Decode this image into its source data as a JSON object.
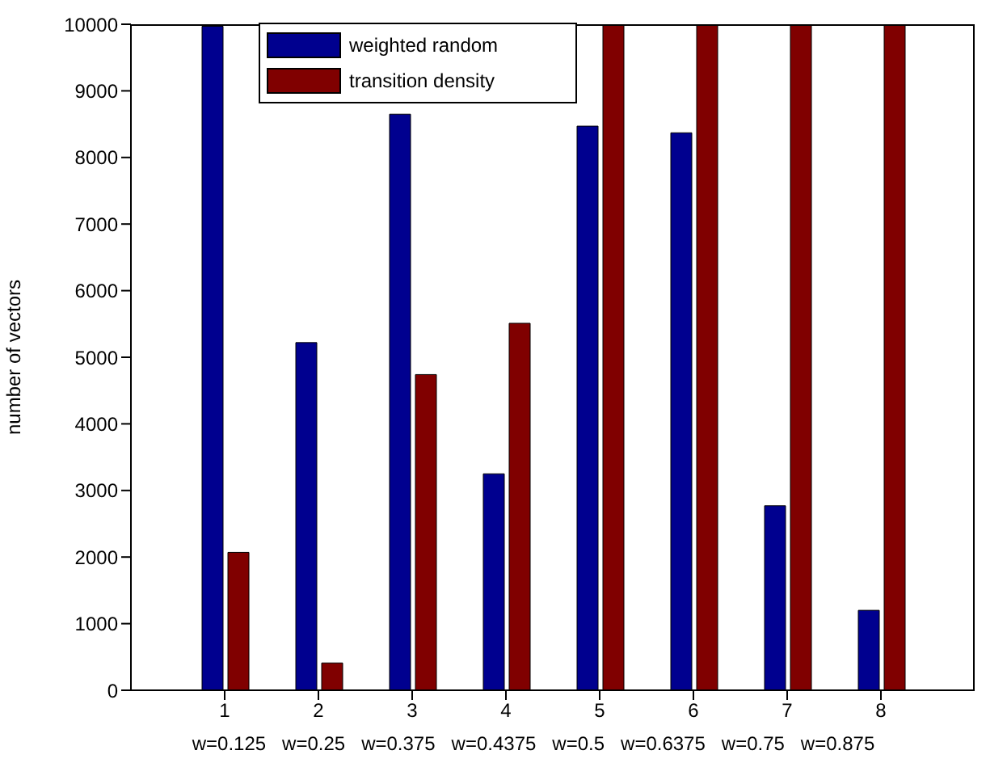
{
  "chart_data": {
    "type": "bar",
    "ylabel": "number of vectors",
    "xlabel": "w=0.125   w=0.25   w=0.375   w=0.4375   w=0.5   w=0.6375   w=0.75   w=0.875",
    "x": [
      1,
      2,
      3,
      4,
      5,
      6,
      7,
      8
    ],
    "xlim": [
      0,
      9
    ],
    "xticks": [
      1,
      2,
      3,
      4,
      5,
      6,
      7,
      8
    ],
    "ylim": [
      0,
      10000
    ],
    "yticks": [
      0,
      1000,
      2000,
      3000,
      4000,
      5000,
      6000,
      7000,
      8000,
      9000,
      10000
    ],
    "series": [
      {
        "name": "weighted random",
        "color": "#00008f",
        "values": [
          9970,
          5220,
          8650,
          3250,
          8470,
          8370,
          2770,
          1200
        ]
      },
      {
        "name": "transition density",
        "color": "#800000",
        "values": [
          2070,
          410,
          4740,
          5510,
          10000,
          10000,
          10000,
          10000
        ]
      }
    ],
    "grid": false,
    "legend": "top"
  }
}
